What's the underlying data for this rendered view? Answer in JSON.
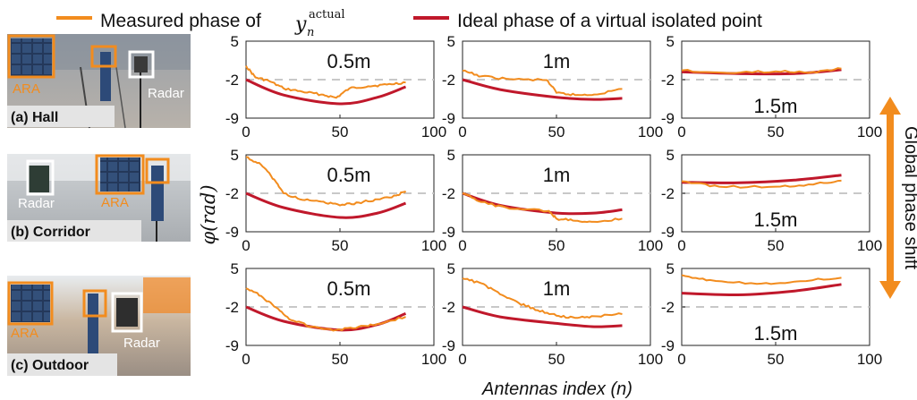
{
  "legend": {
    "measured_label": "Measured phase of",
    "measured_symbol": "y",
    "measured_sub": "n",
    "measured_sup": "actual",
    "ideal_label": "Ideal phase of a virtual isolated point",
    "measured_color": "#f28c1e",
    "ideal_color": "#c0182b"
  },
  "scenes": [
    {
      "caption": "(a) Hall",
      "ara_label": "ARA",
      "radar_label": "Radar"
    },
    {
      "caption": "(b) Corridor",
      "ara_label": "ARA",
      "radar_label": "Radar"
    },
    {
      "caption": "(c) Outdoor",
      "ara_label": "ARA",
      "radar_label": "Radar"
    }
  ],
  "side_annotation": "Global phase shift",
  "chart_data": {
    "type": "line",
    "xlabel": "Antennas index (n)",
    "ylabel": "φ(rad)",
    "xlim": [
      0,
      100
    ],
    "ylim": [
      -9,
      5
    ],
    "xticks": [
      0,
      50,
      100
    ],
    "yticks": [
      5,
      -2,
      -9
    ],
    "reference_line_y": -2,
    "series_names": [
      "Measured phase of y_n^actual",
      "Ideal phase of a virtual isolated point"
    ],
    "grid": [
      [
        {
          "distance": "0.5m",
          "ideal": [
            [
              0,
              -2.0
            ],
            [
              20,
              -4.8
            ],
            [
              50,
              -6.4
            ],
            [
              70,
              -5.2
            ],
            [
              85,
              -3.3
            ]
          ],
          "measured": [
            [
              0,
              0.5
            ],
            [
              5,
              -1.6
            ],
            [
              12,
              -2.2
            ],
            [
              20,
              -3.6
            ],
            [
              30,
              -4.2
            ],
            [
              40,
              -4.7
            ],
            [
              48,
              -5.3
            ],
            [
              55,
              -3.6
            ],
            [
              65,
              -3.2
            ],
            [
              75,
              -2.9
            ],
            [
              85,
              -2.5
            ]
          ]
        },
        {
          "distance": "1m",
          "ideal": [
            [
              0,
              -2.0
            ],
            [
              20,
              -3.8
            ],
            [
              50,
              -5.2
            ],
            [
              70,
              -5.6
            ],
            [
              85,
              -5.4
            ]
          ],
          "measured": [
            [
              0,
              -0.4
            ],
            [
              10,
              -1.4
            ],
            [
              25,
              -1.9
            ],
            [
              45,
              -2.1
            ],
            [
              50,
              -4.4
            ],
            [
              60,
              -4.8
            ],
            [
              70,
              -4.7
            ],
            [
              85,
              -3.7
            ]
          ]
        },
        {
          "distance": "1.5m",
          "ideal": [
            [
              0,
              -0.6
            ],
            [
              30,
              -0.9
            ],
            [
              60,
              -0.9
            ],
            [
              85,
              -0.2
            ]
          ],
          "measured": [
            [
              0,
              -0.3
            ],
            [
              25,
              -0.8
            ],
            [
              50,
              -0.5
            ],
            [
              70,
              -0.6
            ],
            [
              85,
              0.0
            ]
          ]
        }
      ],
      [
        {
          "distance": "0.5m",
          "ideal": [
            [
              0,
              -2.0
            ],
            [
              20,
              -4.6
            ],
            [
              50,
              -6.4
            ],
            [
              70,
              -5.6
            ],
            [
              85,
              -3.8
            ]
          ],
          "measured": [
            [
              0,
              4.6
            ],
            [
              8,
              3.2
            ],
            [
              15,
              0.5
            ],
            [
              20,
              -2.0
            ],
            [
              30,
              -3.2
            ],
            [
              40,
              -3.5
            ],
            [
              50,
              -4.2
            ],
            [
              60,
              -3.7
            ],
            [
              70,
              -3.1
            ],
            [
              80,
              -2.4
            ],
            [
              85,
              -1.6
            ]
          ]
        },
        {
          "distance": "1m",
          "ideal": [
            [
              0,
              -2.0
            ],
            [
              20,
              -4.2
            ],
            [
              50,
              -5.6
            ],
            [
              70,
              -5.6
            ],
            [
              85,
              -5.0
            ]
          ],
          "measured": [
            [
              0,
              -2.0
            ],
            [
              10,
              -3.6
            ],
            [
              25,
              -4.8
            ],
            [
              46,
              -5.2
            ],
            [
              50,
              -6.6
            ],
            [
              60,
              -7.0
            ],
            [
              70,
              -7.2
            ],
            [
              85,
              -6.6
            ]
          ]
        },
        {
          "distance": "1.5m",
          "ideal": [
            [
              0,
              0.0
            ],
            [
              30,
              -0.1
            ],
            [
              60,
              0.4
            ],
            [
              85,
              1.3
            ]
          ],
          "measured": [
            [
              0,
              0.2
            ],
            [
              20,
              -0.8
            ],
            [
              50,
              -0.8
            ],
            [
              70,
              -0.4
            ],
            [
              85,
              0.3
            ]
          ]
        }
      ],
      [
        {
          "distance": "0.5m",
          "ideal": [
            [
              0,
              -2.0
            ],
            [
              20,
              -4.6
            ],
            [
              50,
              -6.2
            ],
            [
              70,
              -5.2
            ],
            [
              85,
              -3.2
            ]
          ],
          "measured": [
            [
              0,
              1.4
            ],
            [
              8,
              0.0
            ],
            [
              16,
              -2.1
            ],
            [
              24,
              -4.4
            ],
            [
              35,
              -5.6
            ],
            [
              48,
              -6.2
            ],
            [
              60,
              -5.6
            ],
            [
              70,
              -5.1
            ],
            [
              85,
              -3.8
            ]
          ]
        },
        {
          "distance": "1m",
          "ideal": [
            [
              0,
              -2.0
            ],
            [
              20,
              -3.8
            ],
            [
              50,
              -5.0
            ],
            [
              70,
              -5.6
            ],
            [
              85,
              -5.4
            ]
          ],
          "measured": [
            [
              0,
              3.2
            ],
            [
              10,
              2.3
            ],
            [
              20,
              0.3
            ],
            [
              30,
              -1.3
            ],
            [
              40,
              -2.6
            ],
            [
              50,
              -3.6
            ],
            [
              60,
              -4.0
            ],
            [
              70,
              -3.7
            ],
            [
              85,
              -3.3
            ]
          ]
        },
        {
          "distance": "1.5m",
          "ideal": [
            [
              0,
              0.5
            ],
            [
              30,
              0.2
            ],
            [
              60,
              0.9
            ],
            [
              85,
              2.1
            ]
          ],
          "measured": [
            [
              0,
              3.8
            ],
            [
              15,
              2.9
            ],
            [
              40,
              2.2
            ],
            [
              60,
              2.6
            ],
            [
              85,
              3.3
            ]
          ]
        }
      ]
    ]
  }
}
